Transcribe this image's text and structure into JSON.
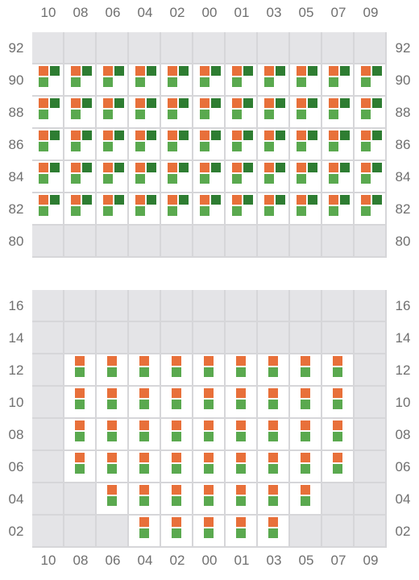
{
  "colors": {
    "orange": "#e8703a",
    "dark_green": "#2e7d32",
    "light_green": "#5aa94f",
    "inactive_cell": "#e4e4e7",
    "grid_line": "#d6d6d9",
    "label": "#6f6f6f"
  },
  "top_grid": {
    "columns": [
      "10",
      "08",
      "06",
      "04",
      "02",
      "00",
      "01",
      "03",
      "05",
      "07",
      "09"
    ],
    "rows": [
      "92",
      "90",
      "88",
      "86",
      "84",
      "82",
      "80"
    ],
    "active_rows": [
      "90",
      "88",
      "86",
      "84",
      "82"
    ],
    "active_columns": [
      "10",
      "08",
      "06",
      "04",
      "02",
      "00",
      "01",
      "03",
      "05",
      "07",
      "09"
    ],
    "markers_per_active_cell": [
      "orange",
      "dark_green",
      "light_green"
    ]
  },
  "bottom_grid": {
    "columns": [
      "10",
      "08",
      "06",
      "04",
      "02",
      "00",
      "01",
      "03",
      "05",
      "07",
      "09"
    ],
    "rows": [
      "16",
      "14",
      "12",
      "10",
      "08",
      "06",
      "04",
      "02"
    ],
    "active_cells": {
      "12": [
        "08",
        "06",
        "04",
        "02",
        "00",
        "01",
        "03",
        "05",
        "07"
      ],
      "10": [
        "08",
        "06",
        "04",
        "02",
        "00",
        "01",
        "03",
        "05",
        "07"
      ],
      "08": [
        "08",
        "06",
        "04",
        "02",
        "00",
        "01",
        "03",
        "05",
        "07"
      ],
      "06": [
        "08",
        "06",
        "04",
        "02",
        "00",
        "01",
        "03",
        "05",
        "07"
      ],
      "04": [
        "06",
        "04",
        "02",
        "00",
        "01",
        "03",
        "05"
      ],
      "02": [
        "04",
        "02",
        "00",
        "01",
        "03"
      ]
    },
    "markers_per_active_cell": [
      "orange",
      "light_green"
    ]
  }
}
